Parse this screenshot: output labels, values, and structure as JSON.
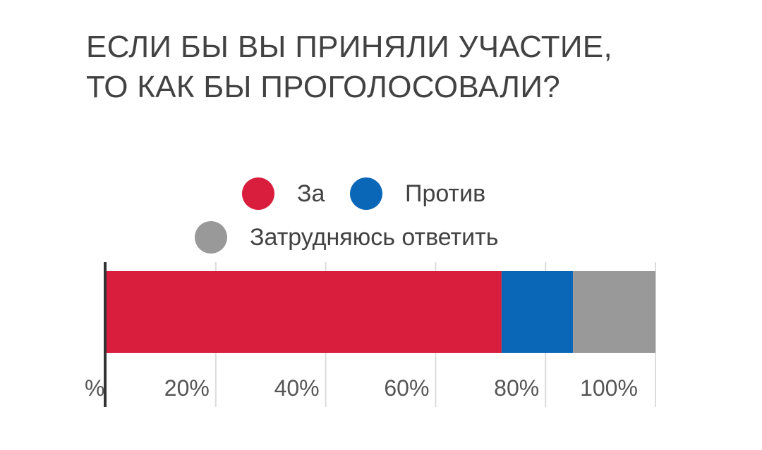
{
  "title_lines": [
    "ЕСЛИ БЫ ВЫ ПРИНЯЛИ УЧАСТИЕ,",
    "ТО КАК БЫ ПРОГОЛОСОВАЛИ?"
  ],
  "legend": [
    {
      "label": "За",
      "color": "#d81e3c"
    },
    {
      "label": "Против",
      "color": "#0a67b8"
    },
    {
      "label": "Затрудняюсь ответить",
      "color": "#999999"
    }
  ],
  "chart_data": {
    "type": "bar",
    "orientation": "horizontal",
    "stacked": true,
    "categories": [
      ""
    ],
    "series": [
      {
        "name": "За",
        "values": [
          72
        ],
        "color": "#d81e3c"
      },
      {
        "name": "Против",
        "values": [
          13
        ],
        "color": "#0a67b8"
      },
      {
        "name": "Затрудняюсь ответить",
        "values": [
          15
        ],
        "color": "#999999"
      }
    ],
    "xlim": [
      0,
      100
    ],
    "xticks": [
      0,
      20,
      40,
      60,
      80,
      100
    ],
    "xtick_labels": [
      "%",
      "20%",
      "40%",
      "60%",
      "80%",
      "100%"
    ],
    "grid": true,
    "legend_position": "top-center"
  }
}
